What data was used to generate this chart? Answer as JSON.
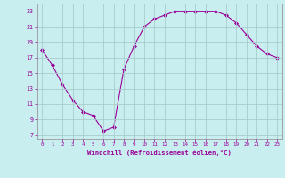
{
  "x": [
    0,
    1,
    2,
    3,
    4,
    5,
    6,
    7,
    8,
    9,
    10,
    11,
    12,
    13,
    14,
    15,
    16,
    17,
    18,
    19,
    20,
    21,
    22,
    23
  ],
  "y": [
    18.0,
    16.0,
    13.5,
    11.5,
    10.0,
    9.5,
    7.5,
    8.0,
    15.5,
    18.5,
    21.0,
    22.0,
    22.5,
    23.0,
    23.0,
    23.0,
    23.0,
    23.0,
    22.5,
    21.5,
    20.0,
    18.5,
    17.5,
    17.0
  ],
  "xlim": [
    -0.5,
    23.5
  ],
  "ylim": [
    6.5,
    24.0
  ],
  "yticks": [
    7,
    9,
    11,
    13,
    15,
    17,
    19,
    21,
    23
  ],
  "xticks": [
    0,
    1,
    2,
    3,
    4,
    5,
    6,
    7,
    8,
    9,
    10,
    11,
    12,
    13,
    14,
    15,
    16,
    17,
    18,
    19,
    20,
    21,
    22,
    23
  ],
  "xlabel": "Windchill (Refroidissement éolien,°C)",
  "line_color": "#990099",
  "marker": "D",
  "marker_size": 2.0,
  "bg_color": "#c8eef0",
  "grid_color": "#aacccc",
  "spine_color": "#999999"
}
